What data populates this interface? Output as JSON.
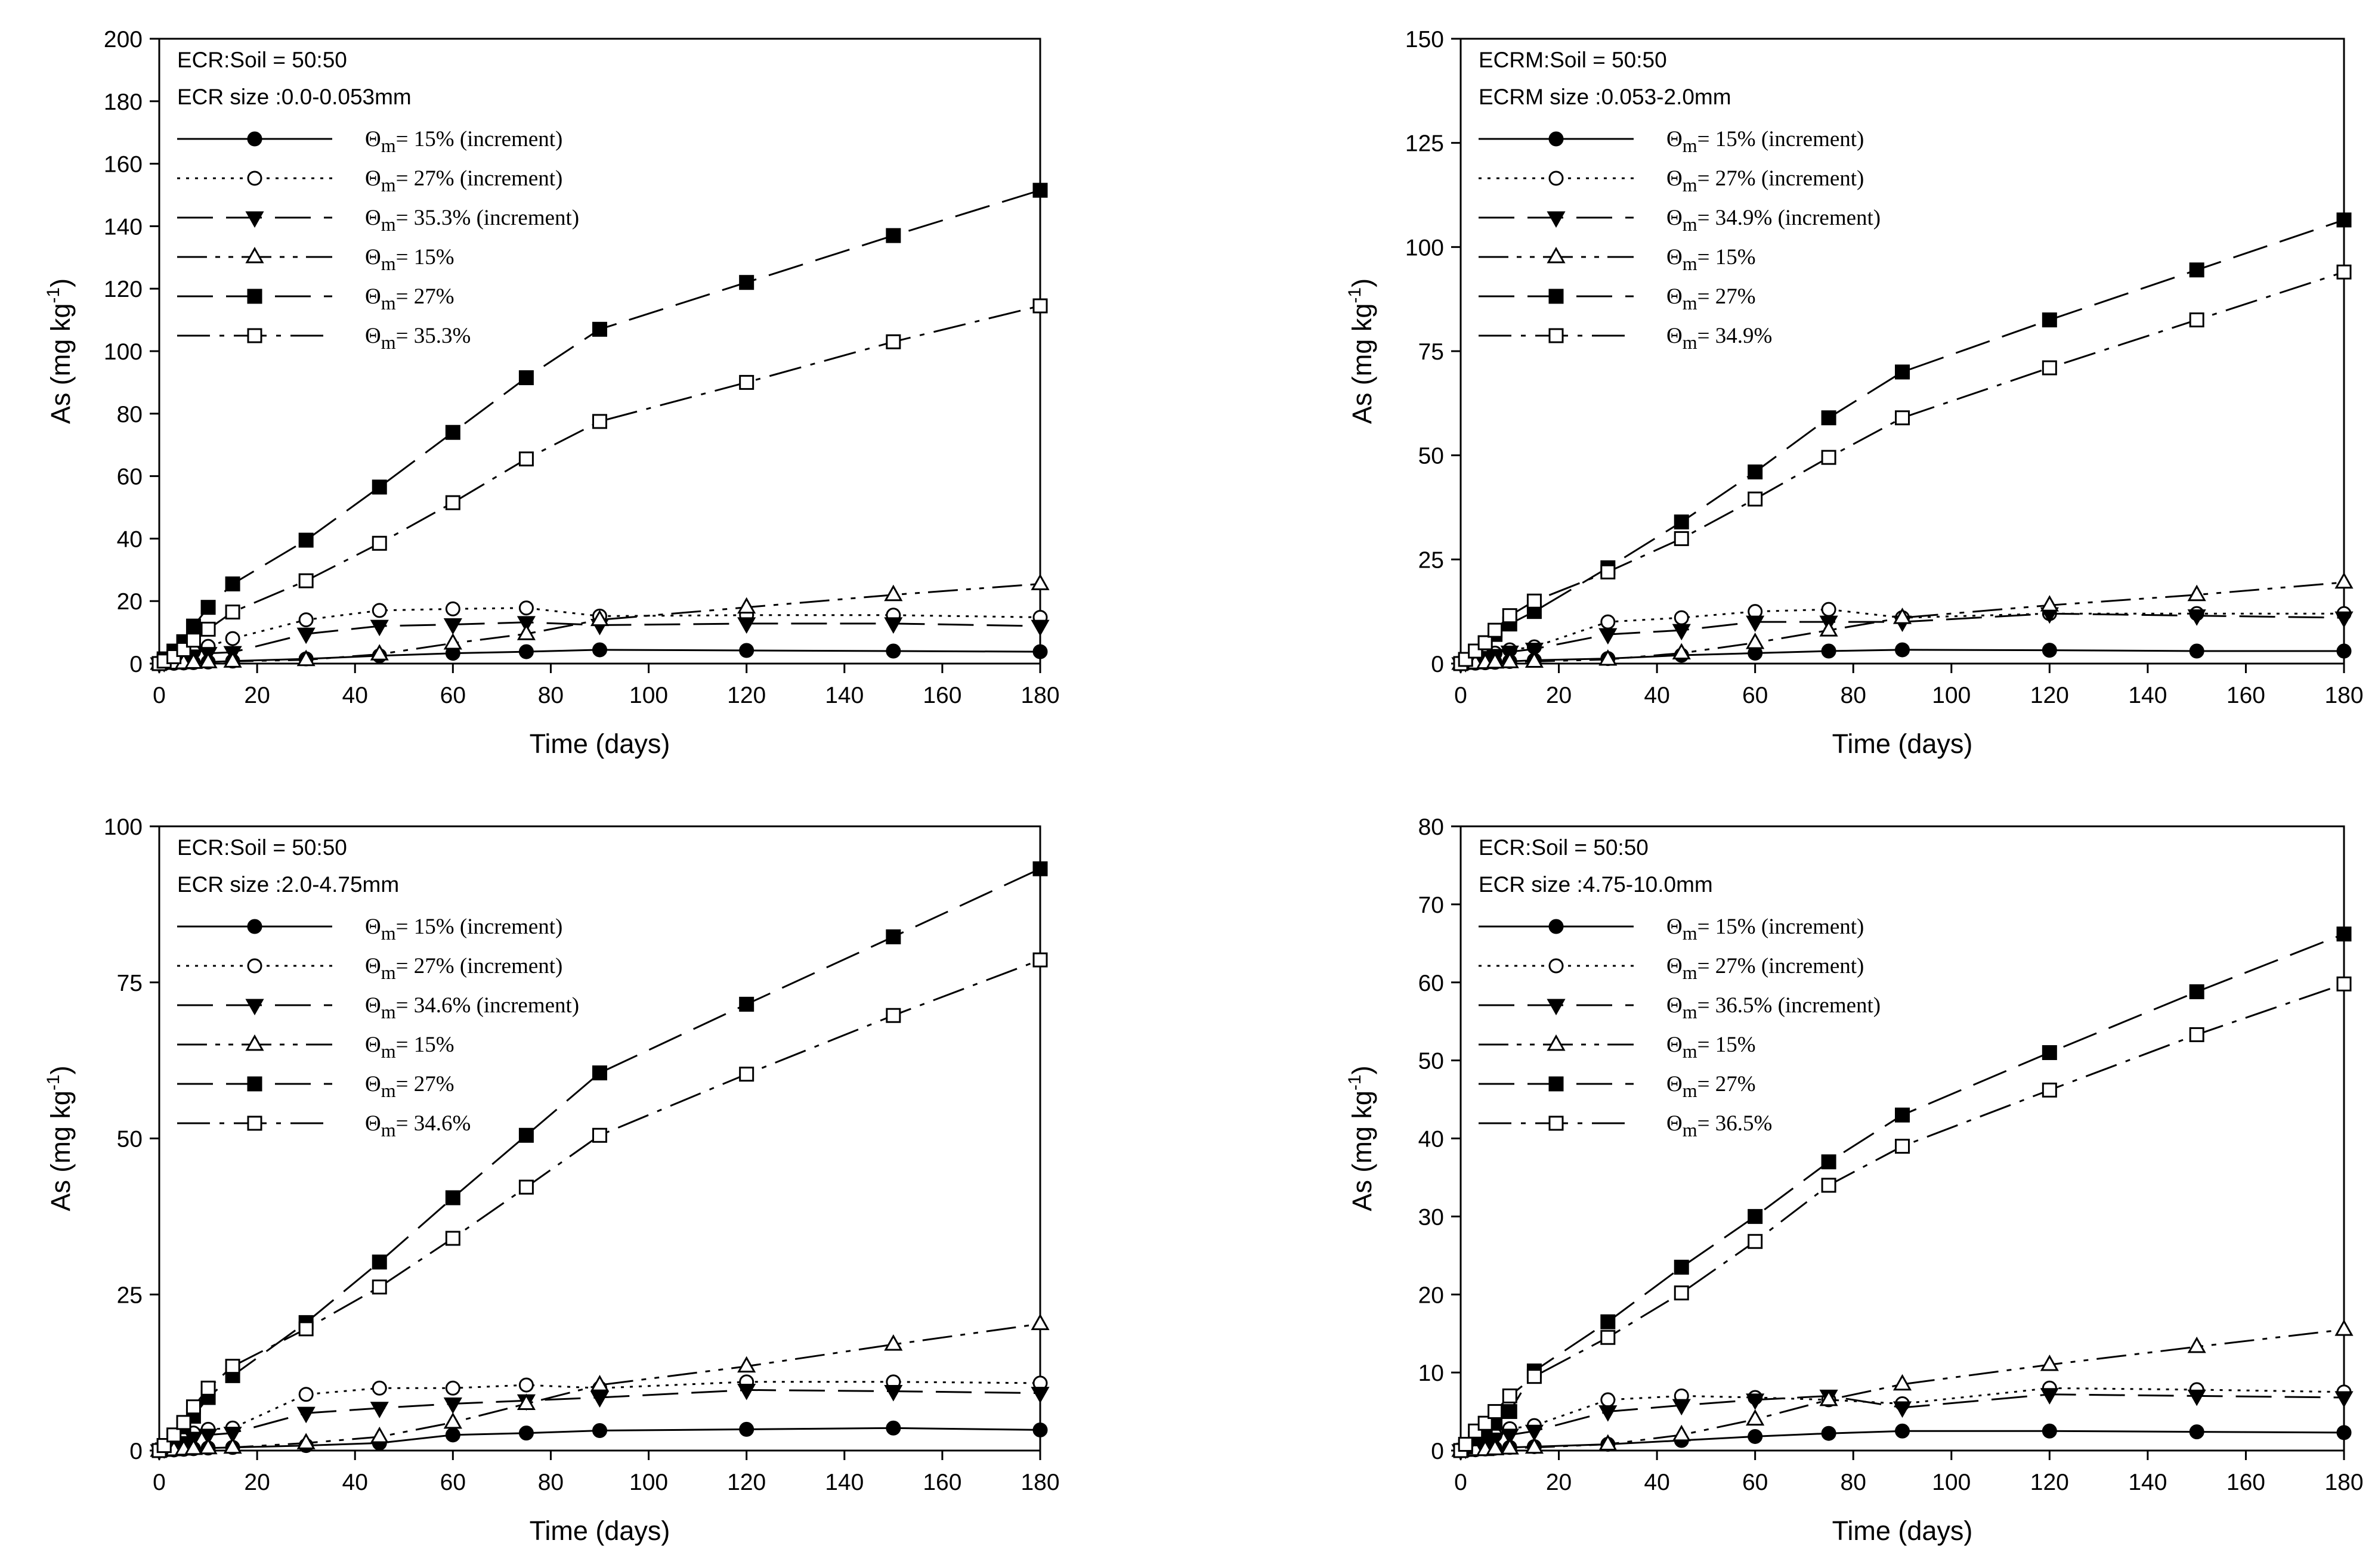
{
  "figure": {
    "background": "#ffffff",
    "ink": "#000000"
  },
  "chart_data": [
    {
      "type": "line",
      "panel": "top-left",
      "xlabel": "Time (days)",
      "ylabel": "As (mg kg-1)",
      "ylabel_base": "As (mg kg",
      "ylabel_exp": "-1",
      "ylabel_close": ")",
      "xlim": [
        0,
        180
      ],
      "ylim": [
        0,
        200
      ],
      "xticks": [
        0,
        20,
        40,
        60,
        80,
        100,
        120,
        140,
        160,
        180
      ],
      "yticks": [
        0,
        20,
        40,
        60,
        80,
        100,
        120,
        140,
        160,
        180,
        200
      ],
      "legend_title": [
        "ECR:Soil = 50:50",
        "ECR size :0.0-0.053mm"
      ],
      "legend_position": "top-left",
      "x": [
        0,
        1,
        3,
        5,
        7,
        10,
        15,
        30,
        45,
        60,
        75,
        90,
        120,
        150,
        180
      ],
      "series": [
        {
          "name": "Θm= 15% (increment)",
          "sym": "Θ",
          "sub": "m",
          "rest": "= 15% (increment)",
          "marker": "circle-filled",
          "dash": "solid",
          "values": [
            0,
            0,
            0.1,
            0.2,
            0.3,
            0.5,
            0.8,
            1.5,
            2.5,
            3.3,
            3.8,
            4.4,
            4.2,
            4.0,
            3.8
          ]
        },
        {
          "name": "Θm= 27% (increment)",
          "sym": "Θ",
          "sub": "m",
          "rest": "= 27% (increment)",
          "marker": "circle-open",
          "dash": "dotted",
          "values": [
            0,
            0.5,
            1.5,
            2.5,
            3.8,
            5.5,
            8,
            14,
            17,
            17.5,
            17.8,
            15.2,
            15.5,
            15.5,
            14.8
          ]
        },
        {
          "name": "Θm= 35.3% (increment)",
          "sym": "Θ",
          "sub": "m",
          "rest": "= 35.3% (increment)",
          "marker": "triangle-down-filled",
          "dash": "longdash",
          "values": [
            0,
            0.4,
            1.0,
            1.8,
            2.5,
            3.3,
            3.6,
            9.5,
            12,
            12.5,
            13.2,
            12.3,
            12.8,
            12.8,
            12
          ]
        },
        {
          "name": "Θm= 15%",
          "sym": "Θ",
          "sub": "m",
          "rest": "= 15%",
          "marker": "triangle-up-open",
          "dash": "dashdotdot",
          "values": [
            0,
            0,
            0.1,
            0.2,
            0.3,
            0.5,
            0.7,
            1.2,
            3,
            6.5,
            9.5,
            14,
            18,
            22,
            25.5
          ]
        },
        {
          "name": "Θm= 27%",
          "sym": "Θ",
          "sub": "m",
          "rest": "= 27%",
          "marker": "square-filled",
          "dash": "longdash",
          "values": [
            0,
            1.5,
            4,
            7,
            12,
            18,
            25.5,
            39.5,
            56.5,
            74,
            91.5,
            107,
            122,
            137,
            151.5
          ]
        },
        {
          "name": "Θm= 35.3%",
          "sym": "Θ",
          "sub": "m",
          "rest": "= 35.3%",
          "marker": "square-open",
          "dash": "dashdot",
          "values": [
            0,
            0.8,
            2.2,
            4.5,
            7.5,
            11,
            16.5,
            26.5,
            38.5,
            51.5,
            65.5,
            77.5,
            90,
            103,
            114.5
          ]
        }
      ]
    },
    {
      "type": "line",
      "panel": "top-right",
      "xlabel": "Time (days)",
      "ylabel": "As (mg kg-1)",
      "ylabel_base": "As (mg kg",
      "ylabel_exp": "-1",
      "ylabel_close": ")",
      "xlim": [
        0,
        180
      ],
      "ylim": [
        0,
        150
      ],
      "xticks": [
        0,
        20,
        40,
        60,
        80,
        100,
        120,
        140,
        160,
        180
      ],
      "yticks": [
        0,
        25,
        50,
        75,
        100,
        125,
        150
      ],
      "legend_title": [
        "ECRM:Soil = 50:50",
        "ECRM size :0.053-2.0mm"
      ],
      "legend_position": "top-left",
      "x": [
        0,
        1,
        3,
        5,
        7,
        10,
        15,
        30,
        45,
        60,
        75,
        90,
        120,
        150,
        180
      ],
      "series": [
        {
          "name": "Θm= 15% (increment)",
          "sym": "Θ",
          "sub": "m",
          "rest": "= 15% (increment)",
          "marker": "circle-filled",
          "dash": "solid",
          "values": [
            0,
            0,
            0.1,
            0.2,
            0.3,
            0.5,
            0.8,
            1.2,
            2.0,
            2.5,
            3.0,
            3.3,
            3.2,
            3.0,
            3.0
          ]
        },
        {
          "name": "Θm= 27% (increment)",
          "sym": "Θ",
          "sub": "m",
          "rest": "= 27% (increment)",
          "marker": "circle-open",
          "dash": "dotted",
          "values": [
            0,
            0.5,
            1.2,
            1.8,
            2.5,
            3.3,
            4.0,
            10,
            11,
            12.5,
            13,
            11,
            12,
            12,
            12
          ]
        },
        {
          "name": "Θm= 34.9% (increment)",
          "sym": "Θ",
          "sub": "m",
          "rest": "= 34.9% (increment)",
          "marker": "triangle-down-filled",
          "dash": "longdash",
          "values": [
            0,
            0.3,
            0.8,
            1.5,
            2.0,
            2.8,
            3.5,
            7,
            8,
            10,
            10,
            10,
            12,
            11.5,
            11
          ]
        },
        {
          "name": "Θm= 15%",
          "sym": "Θ",
          "sub": "m",
          "rest": "= 15%",
          "marker": "triangle-up-open",
          "dash": "dashdotdot",
          "values": [
            0,
            0,
            0.1,
            0.2,
            0.3,
            0.4,
            0.5,
            1.0,
            2.5,
            5,
            8,
            11,
            14,
            16.5,
            19.5
          ]
        },
        {
          "name": "Θm= 27%",
          "sym": "Θ",
          "sub": "m",
          "rest": "= 27%",
          "marker": "square-filled",
          "dash": "longdash",
          "values": [
            0,
            1,
            3,
            5,
            7,
            9.5,
            12.5,
            23,
            34,
            46,
            59,
            70,
            82.5,
            94.5,
            106.5
          ]
        },
        {
          "name": "Θm= 34.9%",
          "sym": "Θ",
          "sub": "m",
          "rest": "= 34.9%",
          "marker": "square-open",
          "dash": "dashdot",
          "values": [
            0,
            1,
            3,
            5,
            8,
            11.5,
            15,
            22,
            30,
            39.5,
            49.5,
            59,
            71,
            82.5,
            94
          ]
        }
      ]
    },
    {
      "type": "line",
      "panel": "bottom-left",
      "xlabel": "Time (days)",
      "ylabel": "As (mg kg-1)",
      "ylabel_base": "As (mg kg",
      "ylabel_exp": "-1",
      "ylabel_close": ")",
      "xlim": [
        0,
        180
      ],
      "ylim": [
        0,
        100
      ],
      "xticks": [
        0,
        20,
        40,
        60,
        80,
        100,
        120,
        140,
        160,
        180
      ],
      "yticks": [
        0,
        25,
        50,
        75,
        100
      ],
      "legend_title": [
        "ECR:Soil = 50:50",
        "ECR size :2.0-4.75mm"
      ],
      "legend_position": "top-left",
      "x": [
        0,
        1,
        3,
        5,
        7,
        10,
        15,
        30,
        45,
        60,
        75,
        90,
        120,
        150,
        180
      ],
      "series": [
        {
          "name": "Θm= 15% (increment)",
          "sym": "Θ",
          "sub": "m",
          "rest": "= 15% (increment)",
          "marker": "circle-filled",
          "dash": "solid",
          "values": [
            0,
            0,
            0.1,
            0.2,
            0.3,
            0.4,
            0.5,
            0.8,
            1.2,
            2.5,
            2.8,
            3.2,
            3.4,
            3.6,
            3.3
          ]
        },
        {
          "name": "Θm= 27% (increment)",
          "sym": "Θ",
          "sub": "m",
          "rest": "= 27% (increment)",
          "marker": "circle-open",
          "dash": "dotted",
          "values": [
            0,
            0.5,
            1.2,
            2.0,
            2.8,
            3.4,
            3.6,
            9,
            10,
            10,
            10.5,
            10,
            11,
            11,
            10.8
          ]
        },
        {
          "name": "Θm= 34.6% (increment)",
          "sym": "Θ",
          "sub": "m",
          "rest": "= 34.6% (increment)",
          "marker": "triangle-down-filled",
          "dash": "longdash",
          "values": [
            0,
            0.3,
            0.8,
            1.3,
            2.0,
            2.5,
            2.8,
            6,
            6.8,
            7.5,
            8,
            8.5,
            9.7,
            9.5,
            9.2
          ]
        },
        {
          "name": "Θm= 15%",
          "sym": "Θ",
          "sub": "m",
          "rest": "= 15%",
          "marker": "triangle-up-open",
          "dash": "dashdotdot",
          "values": [
            0,
            0,
            0.1,
            0.2,
            0.3,
            0.4,
            0.5,
            1.2,
            2.2,
            4.5,
            7.5,
            10.5,
            13.5,
            17,
            20.3
          ]
        },
        {
          "name": "Θm= 27%",
          "sym": "Θ",
          "sub": "m",
          "rest": "= 27%",
          "marker": "square-filled",
          "dash": "longdash",
          "values": [
            0,
            0.8,
            2.2,
            3.8,
            5.5,
            8.5,
            12,
            20.5,
            30.2,
            40.5,
            50.5,
            60.5,
            71.5,
            82.3,
            93.2
          ]
        },
        {
          "name": "Θm= 34.6%",
          "sym": "Θ",
          "sub": "m",
          "rest": "= 34.6%",
          "marker": "square-open",
          "dash": "dashdot",
          "values": [
            0,
            0.8,
            2.5,
            4.5,
            7,
            10,
            13.5,
            19.5,
            26.2,
            34,
            42.2,
            50.5,
            60.3,
            69.7,
            78.6
          ]
        }
      ]
    },
    {
      "type": "line",
      "panel": "bottom-right",
      "xlabel": "Time (days)",
      "ylabel": "As (mg kg-1)",
      "ylabel_base": "As (mg kg",
      "ylabel_exp": "-1",
      "ylabel_close": ")",
      "xlim": [
        0,
        180
      ],
      "ylim": [
        0,
        80
      ],
      "xticks": [
        0,
        20,
        40,
        60,
        80,
        100,
        120,
        140,
        160,
        180
      ],
      "yticks": [
        0,
        10,
        20,
        30,
        40,
        50,
        60,
        70,
        80
      ],
      "legend_title": [
        "ECR:Soil = 50:50",
        "ECR size :4.75-10.0mm"
      ],
      "legend_position": "top-left",
      "x": [
        0,
        1,
        3,
        5,
        7,
        10,
        15,
        30,
        45,
        60,
        75,
        90,
        120,
        150,
        180
      ],
      "series": [
        {
          "name": "Θm= 15% (increment)",
          "sym": "Θ",
          "sub": "m",
          "rest": "= 15% (increment)",
          "marker": "circle-filled",
          "dash": "solid",
          "values": [
            0,
            0,
            0.1,
            0.2,
            0.3,
            0.4,
            0.5,
            0.8,
            1.3,
            1.8,
            2.2,
            2.5,
            2.5,
            2.4,
            2.3
          ]
        },
        {
          "name": "Θm= 27% (increment)",
          "sym": "Θ",
          "sub": "m",
          "rest": "= 27% (increment)",
          "marker": "circle-open",
          "dash": "dotted",
          "values": [
            0,
            0.3,
            0.8,
            1.3,
            2.0,
            2.8,
            3.2,
            6.5,
            7,
            6.8,
            6.5,
            6,
            8,
            7.8,
            7.5
          ]
        },
        {
          "name": "Θm= 36.5% (increment)",
          "sym": "Θ",
          "sub": "m",
          "rest": "= 36.5% (increment)",
          "marker": "triangle-down-filled",
          "dash": "longdash",
          "values": [
            0,
            0.2,
            0.6,
            1.0,
            1.5,
            2.0,
            2.5,
            5,
            5.8,
            6.5,
            7,
            5.5,
            7.2,
            7,
            6.8
          ]
        },
        {
          "name": "Θm= 15%",
          "sym": "Θ",
          "sub": "m",
          "rest": "= 15%",
          "marker": "triangle-up-open",
          "dash": "dashdotdot",
          "values": [
            0,
            0,
            0.1,
            0.1,
            0.2,
            0.3,
            0.4,
            0.8,
            2,
            4,
            6.5,
            8.5,
            11,
            13.3,
            15.5
          ]
        },
        {
          "name": "Θm= 27%",
          "sym": "Θ",
          "sub": "m",
          "rest": "= 27%",
          "marker": "square-filled",
          "dash": "longdash",
          "values": [
            0,
            0.5,
            1.5,
            2.5,
            3.5,
            5,
            10.2,
            16.5,
            23.5,
            30,
            37,
            43,
            51,
            58.8,
            66.2
          ]
        },
        {
          "name": "Θm= 36.5%",
          "sym": "Θ",
          "sub": "m",
          "rest": "= 36.5%",
          "marker": "square-open",
          "dash": "dashdot",
          "values": [
            0,
            0.8,
            2.5,
            3.5,
            5,
            7,
            9.5,
            14.5,
            20.2,
            26.8,
            34,
            39,
            46.2,
            53.3,
            59.8
          ]
        }
      ]
    }
  ]
}
